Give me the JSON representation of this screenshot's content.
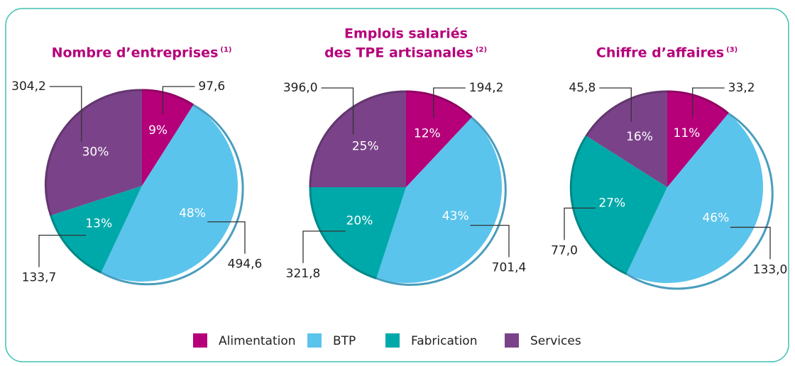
{
  "chart_data": [
    {
      "type": "pie",
      "title_lines": [
        "Nombre d’entreprises"
      ],
      "note": "(1)",
      "categories": [
        "Alimentation",
        "BTP",
        "Fabrication",
        "Services"
      ],
      "colors": [
        "#b5007a",
        "#5bc4ec",
        "#00a9a9",
        "#7a4389"
      ],
      "values": [
        9,
        48,
        13,
        30
      ],
      "value_labels": [
        "9%",
        "48%",
        "13%",
        "30%"
      ],
      "amounts": [
        97.6,
        494.6,
        133.7,
        304.2
      ],
      "amount_labels": [
        "97,6",
        "494,6",
        "133,7",
        "304,2"
      ]
    },
    {
      "type": "pie",
      "title_lines": [
        "Emplois salariés",
        "des TPE artisanales"
      ],
      "note": "(2)",
      "categories": [
        "Alimentation",
        "BTP",
        "Fabrication",
        "Services"
      ],
      "colors": [
        "#b5007a",
        "#5bc4ec",
        "#00a9a9",
        "#7a4389"
      ],
      "values": [
        12,
        43,
        20,
        25
      ],
      "value_labels": [
        "12%",
        "43%",
        "20%",
        "25%"
      ],
      "amounts": [
        194.2,
        701.4,
        321.8,
        396.0
      ],
      "amount_labels": [
        "194,2",
        "701,4",
        "321,8",
        "396,0"
      ]
    },
    {
      "type": "pie",
      "title_lines": [
        "Chiffre d’affaires"
      ],
      "note": "(3)",
      "categories": [
        "Alimentation",
        "BTP",
        "Fabrication",
        "Services"
      ],
      "colors": [
        "#b5007a",
        "#5bc4ec",
        "#00a9a9",
        "#7a4389"
      ],
      "values": [
        11,
        46,
        27,
        16
      ],
      "value_labels": [
        "11%",
        "46%",
        "27%",
        "16%"
      ],
      "amounts": [
        33.2,
        133.0,
        77.0,
        45.8
      ],
      "amount_labels": [
        "33,2",
        "133,0",
        "77,0",
        "45,8"
      ]
    }
  ]
}
